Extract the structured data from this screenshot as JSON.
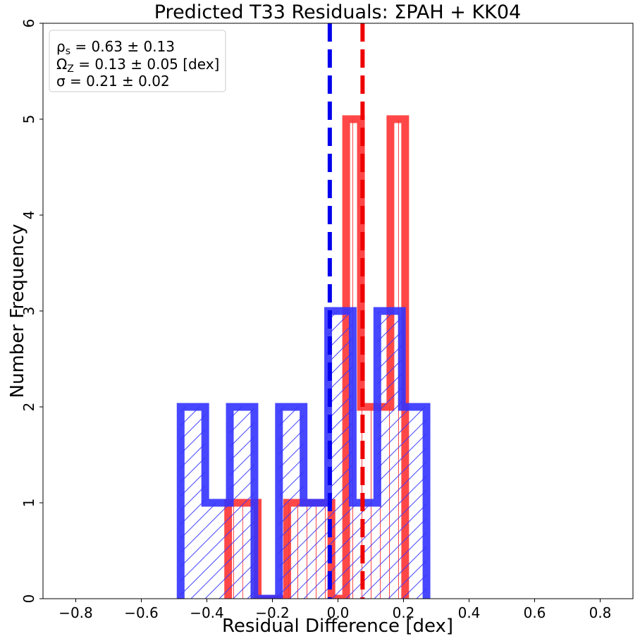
{
  "chart_data": {
    "type": "histogram",
    "title": "Predicted T33 Residuals: ΣPAH + KK04",
    "xlabel": "Residual Difference [dex]",
    "ylabel": "Number Frequency",
    "xlim": [
      -0.9,
      0.9
    ],
    "ylim": [
      0,
      6
    ],
    "xticks": [
      -0.8,
      -0.6,
      -0.4,
      -0.2,
      0.0,
      0.2,
      0.4,
      0.6,
      0.8
    ],
    "xtick_labels": [
      "−0.8",
      "−0.6",
      "−0.4",
      "−0.2",
      "0.0",
      "0.2",
      "0.4",
      "0.6",
      "0.8"
    ],
    "yticks": [
      0,
      1,
      2,
      3,
      4,
      5,
      6
    ],
    "ytick_labels": [
      "0",
      "1",
      "2",
      "3",
      "4",
      "5",
      "6"
    ],
    "grid": false,
    "stats_box_placement": "top-left",
    "stats": {
      "line1_symbol": "ρ",
      "line1_sub": "s",
      "line1_value": " = 0.63 ± 0.13",
      "line2_symbol": "Ω",
      "line2_sub": "Z",
      "line2_value": " = 0.13 ± 0.05 [dex]",
      "line3": "σ = 0.21 ± 0.02"
    },
    "series": [
      {
        "color": "#ff3333",
        "hatch": "vertical",
        "bin_edges": [
          -0.335,
          -0.29,
          -0.245,
          -0.2,
          -0.155,
          -0.11,
          -0.065,
          -0.02,
          0.025,
          0.07,
          0.115,
          0.16,
          0.205
        ],
        "counts": [
          1,
          1,
          0,
          0,
          1,
          1,
          1,
          0,
          5,
          2,
          2,
          5
        ],
        "mean_line": 0.075
      },
      {
        "color": "#3333ff",
        "hatch": "diagonal",
        "bin_edges": [
          -0.48,
          -0.405,
          -0.33,
          -0.255,
          -0.18,
          -0.105,
          -0.03,
          0.045,
          0.12,
          0.195,
          0.27
        ],
        "counts": [
          2,
          1,
          2,
          0,
          2,
          1,
          3,
          1,
          3,
          2
        ],
        "mean_line": -0.025
      }
    ]
  }
}
